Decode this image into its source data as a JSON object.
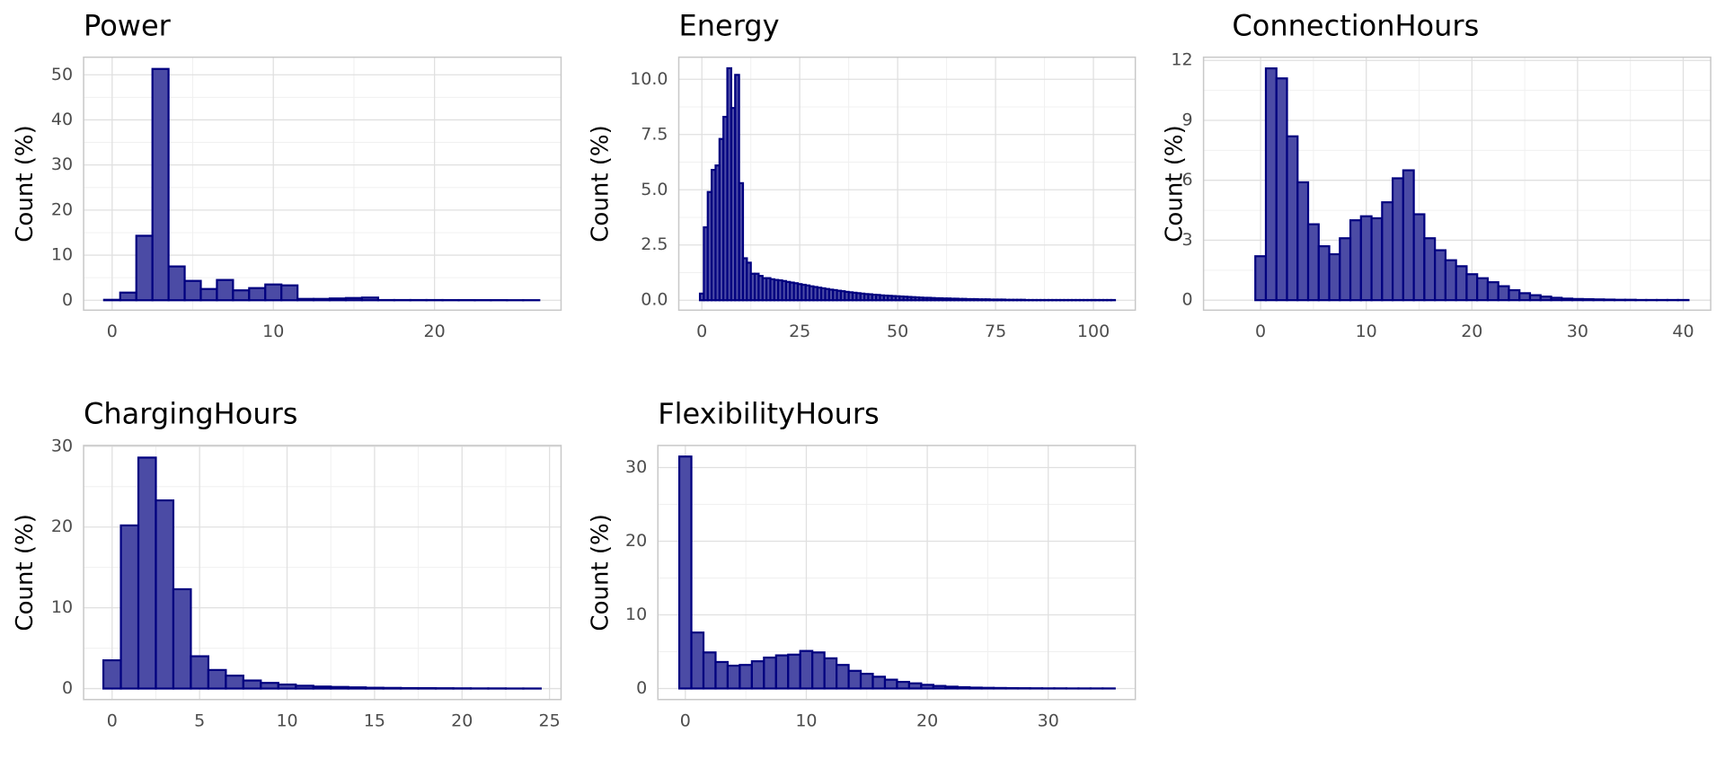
{
  "chart_data": [
    {
      "type": "histogram",
      "title": "Power",
      "y_label": "Count (%)",
      "color": "#4b4ba5",
      "edgecolor": "#00007f",
      "grid": true,
      "bins": [
        -0.5,
        0.5,
        1.5,
        2.5,
        3.5,
        4.5,
        5.5,
        6.5,
        7.5,
        8.5,
        9.5,
        10.5,
        11.5,
        12.5,
        13.5,
        14.5,
        15.5,
        16.5,
        17.5,
        18.5,
        19.5,
        20.5,
        21.5,
        22.5,
        23.5,
        24.5,
        25.5,
        26.5
      ],
      "values": [
        0.1,
        1.7,
        14.3,
        51.3,
        7.5,
        4.3,
        2.5,
        4.5,
        2.2,
        2.7,
        3.5,
        3.3,
        0.3,
        0.3,
        0.4,
        0.5,
        0.6,
        0.05,
        0.05,
        0.05,
        0.05,
        0.04,
        0.04,
        0.03,
        0.03,
        0.02,
        0.02
      ],
      "xlim": [
        -1.77,
        27.85
      ],
      "ylim": [
        -2.2,
        53.9
      ],
      "xticks": [
        0,
        10,
        20
      ],
      "yticks": [
        0,
        10,
        20,
        30,
        40,
        50
      ]
    },
    {
      "type": "histogram",
      "title": "Energy",
      "y_label": "Count (%)",
      "color": "#4b4ba5",
      "edgecolor": "#00007f",
      "grid": true,
      "bins": [
        -0.5,
        0.5,
        1.5,
        2.5,
        3.5,
        4.5,
        5.5,
        6.5,
        7.5,
        8.5,
        9.5,
        10.5,
        11.5,
        12.5,
        13.5,
        14.5,
        15.5,
        16.5,
        17.5,
        18.5,
        19.5,
        20.5,
        21.5,
        22.5,
        23.5,
        24.5,
        25.5,
        26.5,
        27.5,
        28.5,
        29.5,
        30.5,
        31.5,
        32.5,
        33.5,
        34.5,
        35.5,
        36.5,
        37.5,
        38.5,
        39.5,
        40.5,
        41.5,
        42.5,
        43.5,
        44.5,
        45.5,
        46.5,
        47.5,
        48.5,
        49.5,
        50.5,
        51.5,
        52.5,
        53.5,
        54.5,
        55.5,
        56.5,
        57.5,
        58.5,
        59.5,
        60.5,
        61.5,
        62.5,
        63.5,
        64.5,
        65.5,
        66.5,
        67.5,
        68.5,
        69.5,
        70.5,
        71.5,
        72.5,
        73.5,
        74.5,
        75.5,
        76.5,
        77.5,
        78.5,
        79.5,
        80.5,
        81.5,
        82.5,
        83.5,
        84.5,
        85.5,
        86.5,
        87.5,
        88.5,
        89.5,
        90.5,
        91.5,
        92.5,
        93.5,
        94.5,
        95.5,
        96.5,
        97.5,
        98.5,
        99.5,
        100.5,
        101.5,
        102.5,
        103.5,
        104.5,
        105.5
      ],
      "values": [
        0.3,
        3.3,
        4.9,
        5.9,
        6.1,
        7.3,
        8.3,
        10.5,
        8.7,
        10.2,
        5.3,
        1.9,
        1.7,
        1.2,
        1.2,
        1.1,
        1.0,
        1.0,
        0.95,
        0.92,
        0.9,
        0.87,
        0.83,
        0.8,
        0.77,
        0.73,
        0.7,
        0.67,
        0.63,
        0.6,
        0.57,
        0.54,
        0.51,
        0.48,
        0.46,
        0.43,
        0.41,
        0.38,
        0.36,
        0.34,
        0.32,
        0.3,
        0.28,
        0.27,
        0.25,
        0.24,
        0.22,
        0.21,
        0.2,
        0.19,
        0.18,
        0.17,
        0.16,
        0.15,
        0.14,
        0.13,
        0.12,
        0.11,
        0.11,
        0.1,
        0.09,
        0.09,
        0.08,
        0.08,
        0.07,
        0.07,
        0.06,
        0.06,
        0.05,
        0.05,
        0.05,
        0.04,
        0.04,
        0.04,
        0.03,
        0.03,
        0.03,
        0.03,
        0.02,
        0.02,
        0.02,
        0.02,
        0.02,
        0.01,
        0.01,
        0.01,
        0.01,
        0.01,
        0.01,
        0.01,
        0.01,
        0.01,
        0.01,
        0.01,
        0.01,
        0.01,
        0.01,
        0.01,
        0.01,
        0.01,
        0.01,
        0.01,
        0.01,
        0.01,
        0.01,
        0.01
      ],
      "xlim": [
        -5.9,
        110.7
      ],
      "ylim": [
        -0.45,
        11.0
      ],
      "xticks": [
        0,
        25,
        50,
        75,
        100
      ],
      "yticks": [
        {
          "value": 0,
          "label": "0.0"
        },
        2.5,
        {
          "value": 5,
          "label": "5.0"
        },
        7.5,
        {
          "value": 10,
          "label": "10.0"
        }
      ]
    },
    {
      "type": "histogram",
      "title": "ConnectionHours",
      "y_label": "Count (%)",
      "color": "#4b4ba5",
      "edgecolor": "#00007f",
      "grid": true,
      "bins": [
        -0.5,
        0.5,
        1.5,
        2.5,
        3.5,
        4.5,
        5.5,
        6.5,
        7.5,
        8.5,
        9.5,
        10.5,
        11.5,
        12.5,
        13.5,
        14.5,
        15.5,
        16.5,
        17.5,
        18.5,
        19.5,
        20.5,
        21.5,
        22.5,
        23.5,
        24.5,
        25.5,
        26.5,
        27.5,
        28.5,
        29.5,
        30.5,
        31.5,
        32.5,
        33.5,
        34.5,
        35.5,
        36.5,
        37.5,
        38.5,
        39.5,
        40.5
      ],
      "values": [
        2.2,
        11.6,
        11.1,
        8.2,
        5.9,
        3.8,
        2.7,
        2.3,
        3.1,
        4.0,
        4.2,
        4.1,
        4.9,
        6.1,
        6.5,
        4.3,
        3.1,
        2.5,
        2.0,
        1.7,
        1.3,
        1.1,
        0.9,
        0.7,
        0.5,
        0.35,
        0.25,
        0.18,
        0.12,
        0.08,
        0.06,
        0.05,
        0.04,
        0.03,
        0.02,
        0.02,
        0.01,
        0.01,
        0.01,
        0.01,
        0.01
      ],
      "xlim": [
        -5.4,
        42.6
      ],
      "ylim": [
        -0.5,
        12.16
      ],
      "xticks": [
        0,
        10,
        20,
        30,
        40
      ],
      "yticks": [
        0,
        3,
        6,
        9,
        12
      ]
    },
    {
      "type": "histogram",
      "title": "ChargingHours",
      "y_label": "Count (%)",
      "color": "#4b4ba5",
      "edgecolor": "#00007f",
      "grid": true,
      "bins": [
        -0.5,
        0.5,
        1.5,
        2.5,
        3.5,
        4.5,
        5.5,
        6.5,
        7.5,
        8.5,
        9.5,
        10.5,
        11.5,
        12.5,
        13.5,
        14.5,
        15.5,
        16.5,
        17.5,
        18.5,
        19.5,
        20.5,
        21.5,
        22.5,
        23.5,
        24.5
      ],
      "values": [
        3.5,
        20.2,
        28.6,
        23.3,
        12.3,
        4.0,
        2.3,
        1.6,
        1.0,
        0.7,
        0.5,
        0.35,
        0.25,
        0.2,
        0.15,
        0.1,
        0.08,
        0.06,
        0.05,
        0.04,
        0.03,
        0.02,
        0.02,
        0.01,
        0.01
      ],
      "xlim": [
        -1.63,
        25.66
      ],
      "ylim": [
        -1.36,
        30.1
      ],
      "xticks": [
        0,
        5,
        10,
        15,
        20,
        25
      ],
      "yticks": [
        0,
        10,
        20,
        30
      ]
    },
    {
      "type": "histogram",
      "title": "FlexibilityHours",
      "y_label": "Count (%)",
      "color": "#4b4ba5",
      "edgecolor": "#00007f",
      "grid": true,
      "bins": [
        -0.5,
        0.5,
        1.5,
        2.5,
        3.5,
        4.5,
        5.5,
        6.5,
        7.5,
        8.5,
        9.5,
        10.5,
        11.5,
        12.5,
        13.5,
        14.5,
        15.5,
        16.5,
        17.5,
        18.5,
        19.5,
        20.5,
        21.5,
        22.5,
        23.5,
        24.5,
        25.5,
        26.5,
        27.5,
        28.5,
        29.5,
        30.5,
        31.5,
        32.5,
        33.5,
        34.5,
        35.5
      ],
      "values": [
        31.5,
        7.6,
        4.9,
        3.6,
        3.1,
        3.2,
        3.7,
        4.2,
        4.5,
        4.6,
        5.1,
        4.9,
        4.1,
        3.2,
        2.4,
        2.0,
        1.6,
        1.2,
        0.9,
        0.7,
        0.5,
        0.35,
        0.25,
        0.18,
        0.12,
        0.09,
        0.07,
        0.05,
        0.04,
        0.03,
        0.02,
        0.02,
        0.01,
        0.01,
        0.01,
        0.01
      ],
      "xlim": [
        -2.27,
        37.2
      ],
      "ylim": [
        -1.5,
        33.0
      ],
      "xticks": [
        0,
        10,
        20,
        30
      ],
      "yticks": [
        0,
        10,
        20,
        30
      ]
    }
  ]
}
